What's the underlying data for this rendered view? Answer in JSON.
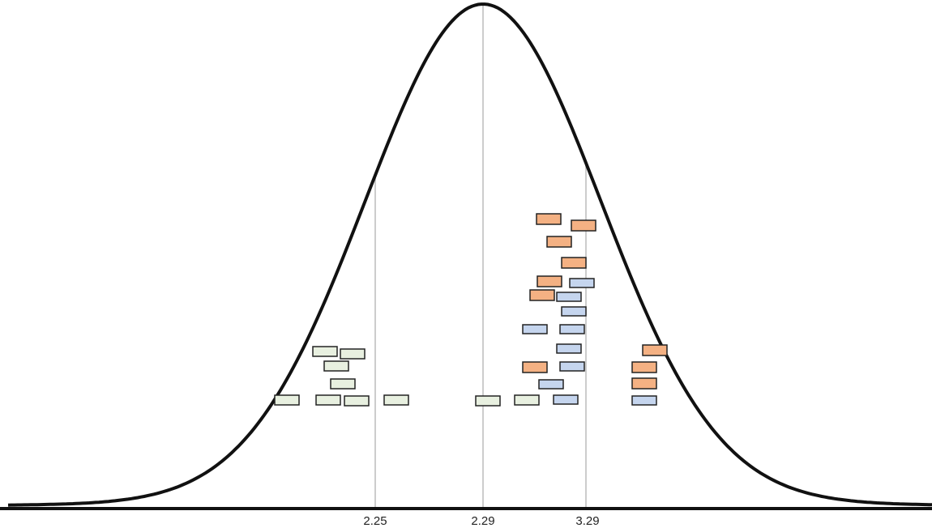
{
  "axis": {
    "labels": [
      "2.25",
      "2.29",
      "3.29"
    ]
  }
}
